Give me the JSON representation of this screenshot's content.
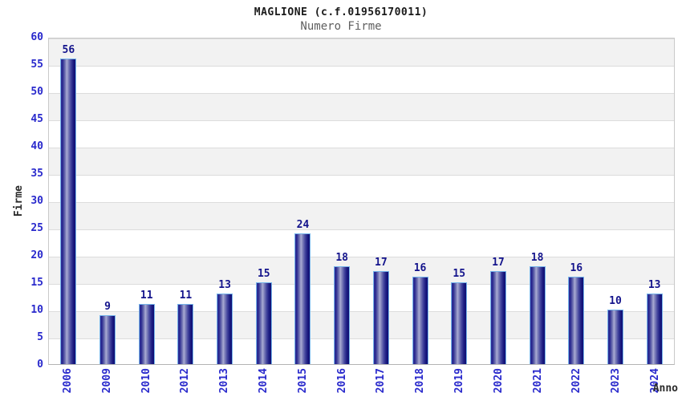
{
  "chart_data": {
    "type": "bar",
    "title": "MAGLIONE (c.f.01956170011)",
    "subtitle": "Numero Firme",
    "xlabel": "Anno",
    "ylabel": "Firme",
    "categories": [
      "2006",
      "2009",
      "2010",
      "2012",
      "2013",
      "2014",
      "2015",
      "2016",
      "2017",
      "2018",
      "2019",
      "2020",
      "2021",
      "2022",
      "2023",
      "2024"
    ],
    "values": [
      56,
      9,
      11,
      11,
      13,
      15,
      24,
      18,
      17,
      16,
      15,
      17,
      18,
      16,
      10,
      13
    ],
    "ylim": [
      0,
      60
    ],
    "yticks": [
      0,
      5,
      10,
      15,
      20,
      25,
      30,
      35,
      40,
      45,
      50,
      55,
      60
    ],
    "grid": "horizontal gridlines every 5 units with alternating gray/white bands",
    "legend": "none",
    "colors": {
      "title": "#1a1a1a",
      "subtitle": "#5f5f5f",
      "axis_label": "#2b2b2b",
      "tick_label": "#2929cc",
      "value_label": "#14148c",
      "bar_border": "#76b4ea",
      "bar_gradient_stops": [
        "#32329b",
        "#26268e",
        "#7678b5",
        "#a9abd3",
        "#8486bd",
        "#45479f",
        "#1c1c81",
        "#0e0e73"
      ],
      "band_gray": "#f2f2f2",
      "band_white": "#ffffff",
      "gridline": "#dcdcdc",
      "plot_border": "#c9c9c9",
      "axis_line": "#b4b4b4",
      "background": "#ffffff"
    }
  }
}
